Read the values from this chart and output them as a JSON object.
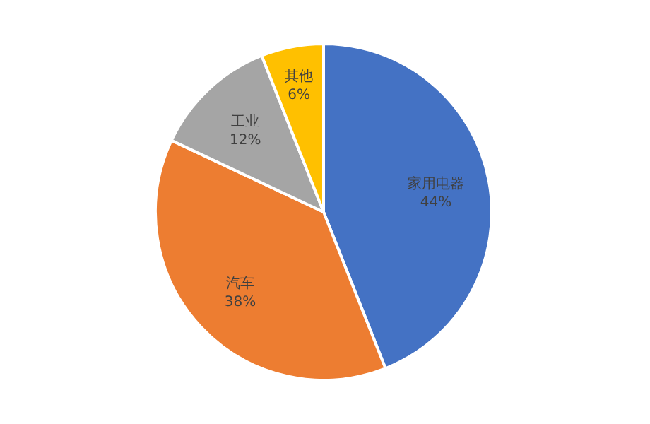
{
  "chart_data": {
    "type": "pie",
    "categories": [
      "家用电器",
      "汽车",
      "工业",
      "其他"
    ],
    "values": [
      44,
      38,
      12,
      6
    ],
    "colors": [
      "#4472c4",
      "#ed7d31",
      "#a5a5a5",
      "#ffc000"
    ],
    "value_labels": [
      "44%",
      "38%",
      "12%",
      "6%"
    ]
  }
}
